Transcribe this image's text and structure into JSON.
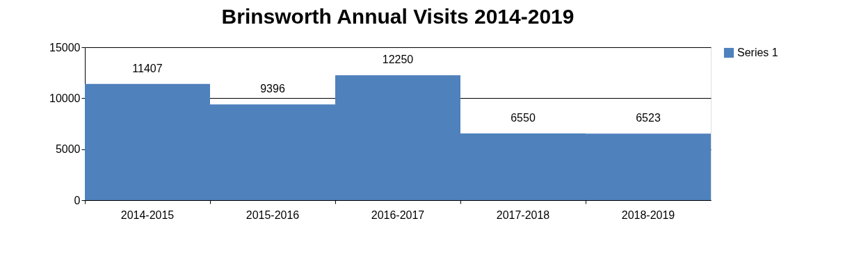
{
  "chart_data": {
    "type": "bar",
    "title": "Brinsworth Annual Visits 2014-2019",
    "categories": [
      "2014-2015",
      "2015-2016",
      "2016-2017",
      "2017-2018",
      "2018-2019"
    ],
    "series": [
      {
        "name": "Series 1",
        "color": "#4f81bd",
        "values": [
          11407,
          9396,
          12250,
          6550,
          6523
        ]
      }
    ],
    "ylim": [
      0,
      15000
    ],
    "yticks": [
      0,
      5000,
      10000,
      15000
    ],
    "grid": "y",
    "legend": "right",
    "data_labels": true
  }
}
